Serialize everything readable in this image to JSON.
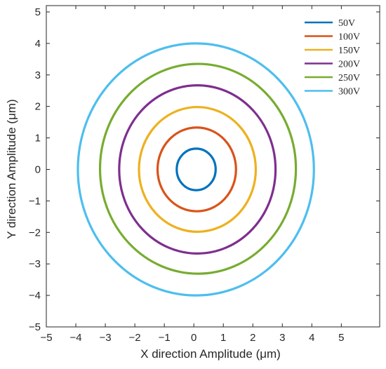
{
  "chart_data": {
    "type": "line",
    "title": "",
    "xlabel": "X direction Amplitude (μm)",
    "ylabel": "Y direction Amplitude (μm)",
    "xlim": [
      -5,
      6.3
    ],
    "ylim": [
      -5,
      5.2
    ],
    "xticks": [
      -5,
      -4,
      -3,
      -2,
      -1,
      0,
      1,
      2,
      3,
      4,
      5
    ],
    "yticks": [
      -5,
      -4,
      -3,
      -2,
      -1,
      0,
      1,
      2,
      3,
      4,
      5
    ],
    "xtick_labels": [
      "−5",
      "−4",
      "−3",
      "−2",
      "−1",
      "0",
      "1",
      "2",
      "3",
      "4",
      "5"
    ],
    "ytick_labels": [
      "−5",
      "−4",
      "−3",
      "−2",
      "−1",
      "0",
      "1",
      "2",
      "3",
      "4",
      "5"
    ],
    "grid": false,
    "legend_position": "top-right",
    "series": [
      {
        "name": "50V",
        "color": "#0072BD",
        "center": [
          0.08,
          0.0
        ],
        "rx": 0.66,
        "ry": 0.66
      },
      {
        "name": "100V",
        "color": "#D95319",
        "center": [
          0.1,
          0.0
        ],
        "rx": 1.33,
        "ry": 1.33
      },
      {
        "name": "150V",
        "color": "#EDB120",
        "center": [
          0.12,
          0.0
        ],
        "rx": 1.98,
        "ry": 1.98
      },
      {
        "name": "200V",
        "color": "#7E2F8E",
        "center": [
          0.12,
          0.0
        ],
        "rx": 2.65,
        "ry": 2.67
      },
      {
        "name": "250V",
        "color": "#77AC30",
        "center": [
          0.14,
          0.02
        ],
        "rx": 3.32,
        "ry": 3.33
      },
      {
        "name": "300V",
        "color": "#4DBEEE",
        "center": [
          0.07,
          0.0
        ],
        "rx": 4.0,
        "ry": 4.0
      }
    ]
  }
}
